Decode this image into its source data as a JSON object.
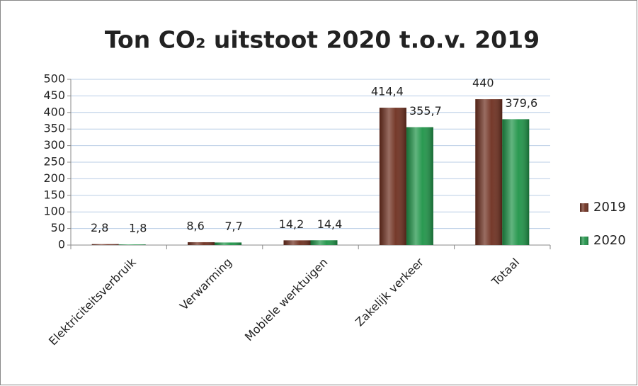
{
  "chart_data": {
    "type": "bar",
    "title": "Ton CO₂ uitstoot 2020 t.o.v. 2019",
    "categories": [
      "Elektriciteitsverbruik",
      "Verwarming",
      "Mobiele werktuigen",
      "Zakelijk verkeer",
      "Totaal"
    ],
    "series": [
      {
        "name": "2019",
        "color": "#6e2f1f",
        "values": [
          2.8,
          8.6,
          14.2,
          414.4,
          440
        ],
        "value_labels": [
          "2,8",
          "8,6",
          "14,2",
          "414,4",
          "440"
        ]
      },
      {
        "name": "2020",
        "color": "#1f9448",
        "values": [
          1.8,
          7.7,
          14.4,
          355.7,
          379.6
        ],
        "value_labels": [
          "1,8",
          "7,7",
          "14,4",
          "355,7",
          "379,6"
        ]
      }
    ],
    "ylim": [
      0,
      500
    ],
    "yticks": [
      0,
      50,
      100,
      150,
      200,
      250,
      300,
      350,
      400,
      450,
      500
    ],
    "grid": true,
    "legend": "right"
  }
}
